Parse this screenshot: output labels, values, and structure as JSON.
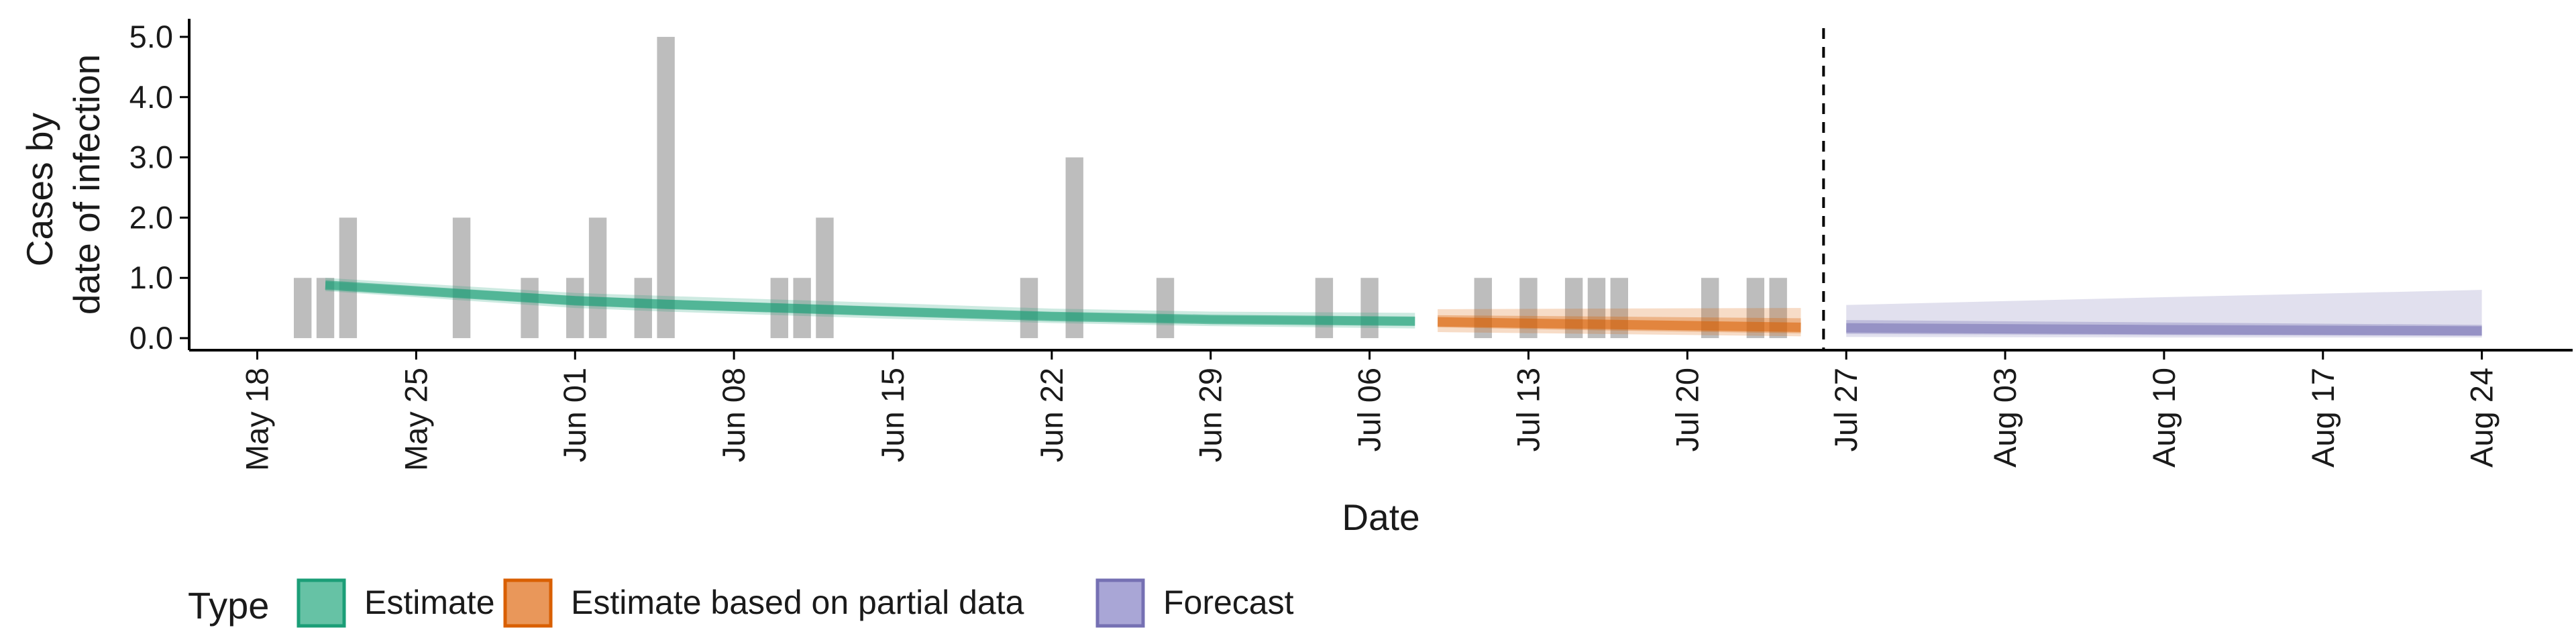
{
  "chart_data": {
    "type": "bar",
    "xlabel": "Date",
    "ylabel_lines": [
      "Cases by",
      "date of infection"
    ],
    "y_ticks": [
      {
        "value": 0,
        "label": "0.0"
      },
      {
        "value": 1,
        "label": "1.0"
      },
      {
        "value": 2,
        "label": "2.0"
      },
      {
        "value": 3,
        "label": "3.0"
      },
      {
        "value": 4,
        "label": "4.0"
      },
      {
        "value": 5,
        "label": "5.0"
      }
    ],
    "ylim": [
      -0.2,
      5.3
    ],
    "xlim": [
      "2020-05-15",
      "2020-08-28"
    ],
    "x_ticks": [
      {
        "date": "2020-05-18",
        "label": "May 18"
      },
      {
        "date": "2020-05-25",
        "label": "May 25"
      },
      {
        "date": "2020-06-01",
        "label": "Jun 01"
      },
      {
        "date": "2020-06-08",
        "label": "Jun 08"
      },
      {
        "date": "2020-06-15",
        "label": "Jun 15"
      },
      {
        "date": "2020-06-22",
        "label": "Jun 22"
      },
      {
        "date": "2020-06-29",
        "label": "Jun 29"
      },
      {
        "date": "2020-07-06",
        "label": "Jul 06"
      },
      {
        "date": "2020-07-13",
        "label": "Jul 13"
      },
      {
        "date": "2020-07-20",
        "label": "Jul 20"
      },
      {
        "date": "2020-07-27",
        "label": "Jul 27"
      },
      {
        "date": "2020-08-03",
        "label": "Aug 03"
      },
      {
        "date": "2020-08-10",
        "label": "Aug 10"
      },
      {
        "date": "2020-08-17",
        "label": "Aug 17"
      },
      {
        "date": "2020-08-24",
        "label": "Aug 24"
      }
    ],
    "observed_cases": [
      {
        "date": "2020-05-20",
        "value": 1
      },
      {
        "date": "2020-05-21",
        "value": 1
      },
      {
        "date": "2020-05-22",
        "value": 2
      },
      {
        "date": "2020-05-27",
        "value": 2
      },
      {
        "date": "2020-05-30",
        "value": 1
      },
      {
        "date": "2020-06-01",
        "value": 1
      },
      {
        "date": "2020-06-02",
        "value": 2
      },
      {
        "date": "2020-06-04",
        "value": 1
      },
      {
        "date": "2020-06-05",
        "value": 5
      },
      {
        "date": "2020-06-10",
        "value": 1
      },
      {
        "date": "2020-06-11",
        "value": 1
      },
      {
        "date": "2020-06-12",
        "value": 2
      },
      {
        "date": "2020-06-21",
        "value": 1
      },
      {
        "date": "2020-06-23",
        "value": 3
      },
      {
        "date": "2020-06-27",
        "value": 1
      },
      {
        "date": "2020-07-04",
        "value": 1
      },
      {
        "date": "2020-07-06",
        "value": 1
      },
      {
        "date": "2020-07-11",
        "value": 1
      },
      {
        "date": "2020-07-13",
        "value": 1
      },
      {
        "date": "2020-07-15",
        "value": 1
      },
      {
        "date": "2020-07-16",
        "value": 1
      },
      {
        "date": "2020-07-17",
        "value": 1
      },
      {
        "date": "2020-07-21",
        "value": 1
      },
      {
        "date": "2020-07-23",
        "value": 1
      },
      {
        "date": "2020-07-24",
        "value": 1
      }
    ],
    "forecast_start": "2020-07-26",
    "series": [
      {
        "name": "Estimate",
        "color": "#1b9e77",
        "points": [
          {
            "date": "2020-05-21",
            "median": 0.88,
            "inner": [
              0.82,
              0.94
            ],
            "outer": [
              0.78,
              1.0
            ]
          },
          {
            "date": "2020-06-01",
            "median": 0.62,
            "inner": [
              0.55,
              0.7
            ],
            "outer": [
              0.5,
              0.75
            ]
          },
          {
            "date": "2020-06-05",
            "median": 0.56,
            "inner": [
              0.49,
              0.64
            ],
            "outer": [
              0.44,
              0.7
            ]
          },
          {
            "date": "2020-06-15",
            "median": 0.44,
            "inner": [
              0.37,
              0.51
            ],
            "outer": [
              0.32,
              0.58
            ]
          },
          {
            "date": "2020-06-22",
            "median": 0.36,
            "inner": [
              0.3,
              0.43
            ],
            "outer": [
              0.25,
              0.49
            ]
          },
          {
            "date": "2020-06-29",
            "median": 0.31,
            "inner": [
              0.25,
              0.37
            ],
            "outer": [
              0.2,
              0.44
            ]
          },
          {
            "date": "2020-07-08",
            "median": 0.28,
            "inner": [
              0.21,
              0.35
            ],
            "outer": [
              0.16,
              0.42
            ]
          }
        ]
      },
      {
        "name": "Estimate based on partial data",
        "color": "#d95f02",
        "points": [
          {
            "date": "2020-07-09",
            "median": 0.27,
            "inner": [
              0.18,
              0.38
            ],
            "outer": [
              0.1,
              0.48
            ]
          },
          {
            "date": "2020-07-16",
            "median": 0.23,
            "inner": [
              0.13,
              0.36
            ],
            "outer": [
              0.07,
              0.49
            ]
          },
          {
            "date": "2020-07-25",
            "median": 0.18,
            "inner": [
              0.08,
              0.33
            ],
            "outer": [
              0.03,
              0.5
            ]
          }
        ]
      },
      {
        "name": "Forecast",
        "color": "#7570b3",
        "points": [
          {
            "date": "2020-07-27",
            "median": 0.17,
            "inner": [
              0.07,
              0.3
            ],
            "outer": [
              0.02,
              0.55
            ]
          },
          {
            "date": "2020-08-10",
            "median": 0.14,
            "inner": [
              0.05,
              0.26
            ],
            "outer": [
              0.01,
              0.68
            ]
          },
          {
            "date": "2020-08-24",
            "median": 0.12,
            "inner": [
              0.04,
              0.22
            ],
            "outer": [
              0.01,
              0.8
            ]
          }
        ]
      }
    ],
    "legend": {
      "title": "Type",
      "position": "bottom",
      "items": [
        {
          "label": "Estimate",
          "fill": "#66c2a5",
          "stroke": "#1b9e77"
        },
        {
          "label": "Estimate based on partial data",
          "fill": "#e9975a",
          "stroke": "#d95f02"
        },
        {
          "label": "Forecast",
          "fill": "#a9a6d6",
          "stroke": "#7570b3"
        }
      ]
    },
    "bar_color": "#bdbdbd",
    "grid": false
  }
}
